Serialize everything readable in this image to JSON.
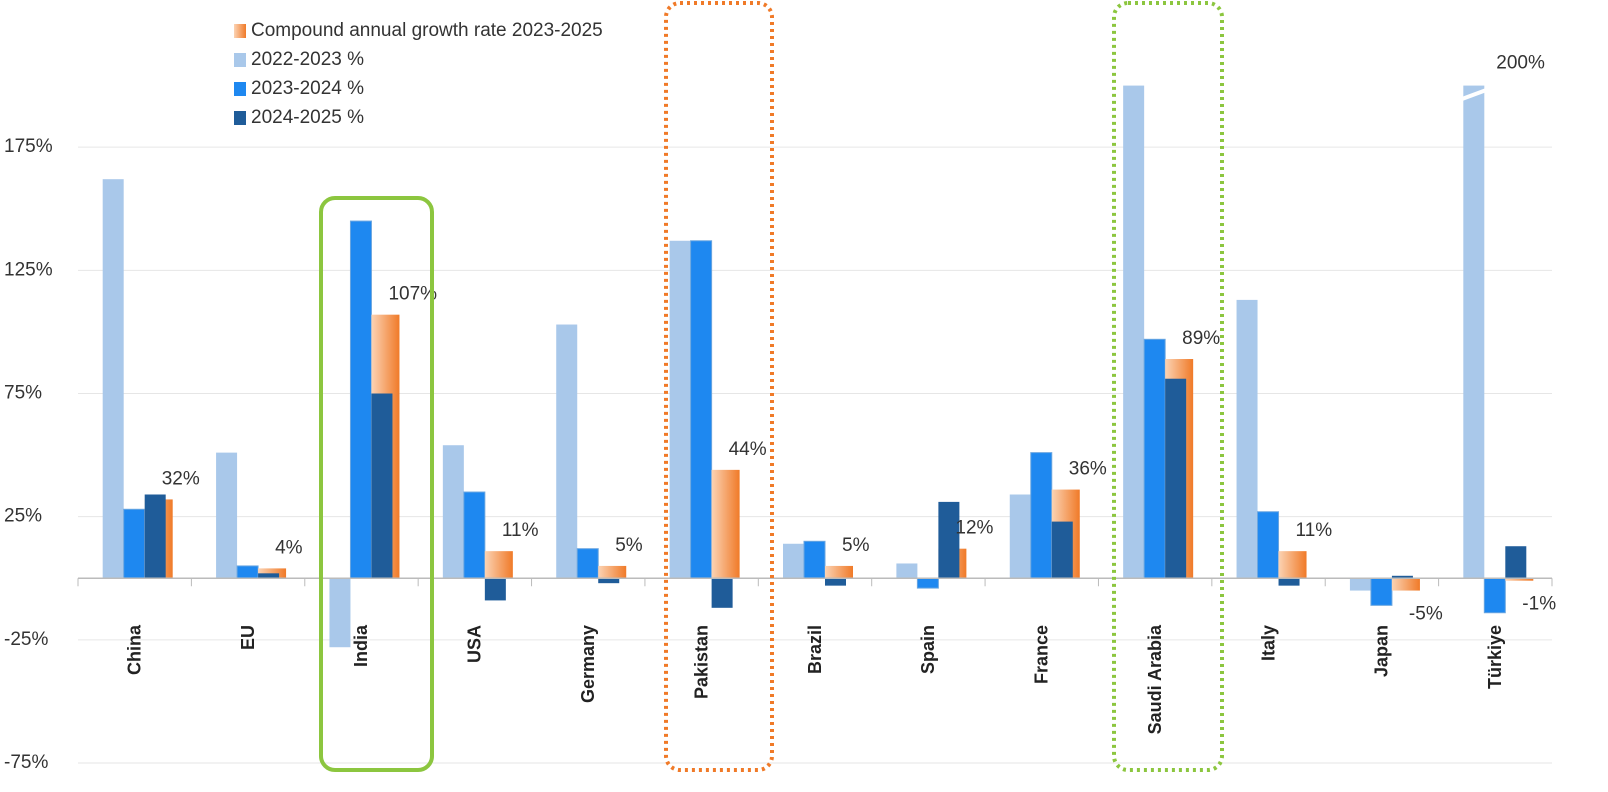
{
  "chart_data": {
    "type": "bar",
    "categories": [
      "China",
      "EU",
      "India",
      "USA",
      "Germany",
      "Pakistan",
      "Brazil",
      "Spain",
      "France",
      "Saudi Arabia",
      "Italy",
      "Japan",
      "Türkiye"
    ],
    "series": [
      {
        "name": "Compound annual growth rate  2023-2025",
        "color": "#f08030",
        "values": [
          32,
          4,
          107,
          11,
          5,
          44,
          5,
          12,
          36,
          89,
          11,
          -5,
          -1
        ],
        "value_labels": [
          "32%",
          "4%",
          "107%",
          "11%",
          "5%",
          "44%",
          "5%",
          "12%",
          "36%",
          "89%",
          "11%",
          "-5%",
          "-1%"
        ]
      },
      {
        "name": "2022-2023 %",
        "color": "#a9c8ea",
        "values": [
          162,
          51,
          -28,
          54,
          103,
          137,
          14,
          6,
          34,
          200,
          113,
          -5,
          200
        ],
        "value_labels": [
          null,
          null,
          null,
          null,
          null,
          null,
          null,
          null,
          null,
          null,
          null,
          null,
          "200%"
        ]
      },
      {
        "name": "2023-2024 %",
        "color": "#1e88f0",
        "values": [
          28,
          5,
          145,
          35,
          12,
          137,
          15,
          -4,
          51,
          97,
          27,
          -11,
          -14
        ]
      },
      {
        "name": "2024-2025 %",
        "color": "#1f5c99",
        "values": [
          34,
          2,
          75,
          -9,
          -2,
          -12,
          -3,
          31,
          23,
          81,
          -3,
          1,
          13
        ]
      }
    ],
    "ylim": [
      -75,
      225
    ],
    "yticks": [
      {
        "value": -75,
        "label": "-75%"
      },
      {
        "value": -25,
        "label": "-25%"
      },
      {
        "value": 25,
        "label": "25%"
      },
      {
        "value": 75,
        "label": "75%"
      },
      {
        "value": 125,
        "label": "125%"
      },
      {
        "value": 175,
        "label": "175%"
      }
    ],
    "grid": true
  }
}
